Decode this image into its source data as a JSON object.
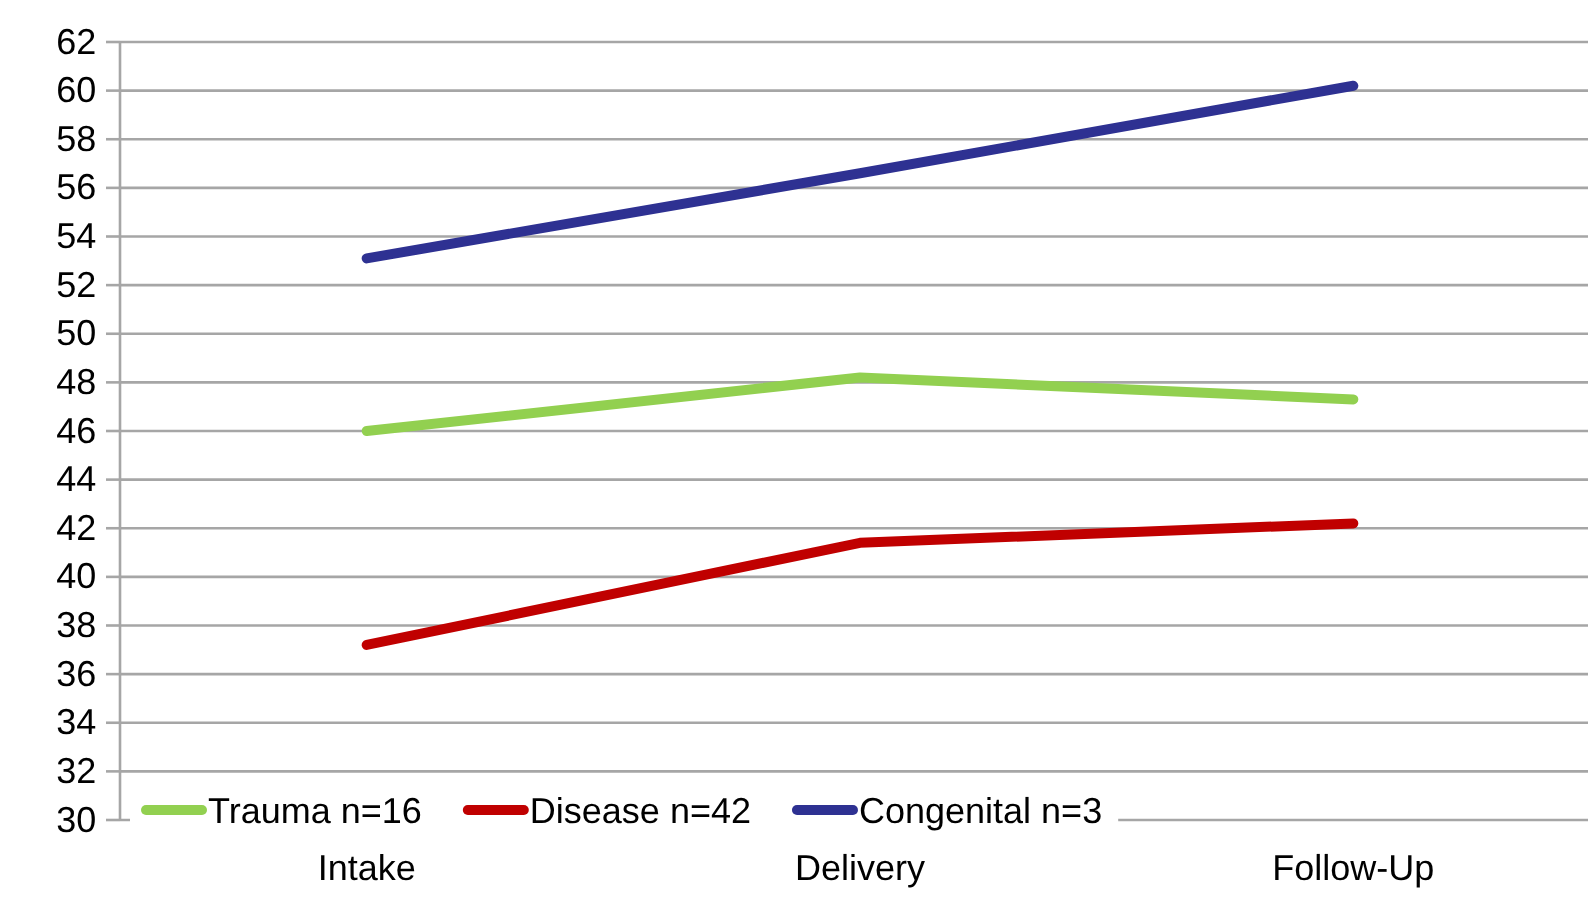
{
  "chart_data": {
    "type": "line",
    "categories": [
      "Intake",
      "Delivery",
      "Follow-Up"
    ],
    "series": [
      {
        "name": "Trauma n=16",
        "color": "#92d050",
        "values": [
          46.0,
          48.2,
          47.3
        ]
      },
      {
        "name": "Disease n=42",
        "color": "#c00000",
        "values": [
          37.2,
          41.4,
          42.2
        ]
      },
      {
        "name": "Congenital n=3",
        "color": "#2e3192",
        "values": [
          53.1,
          56.6,
          60.2
        ]
      }
    ],
    "ylim": [
      30,
      62
    ],
    "yticks": [
      30,
      32,
      34,
      36,
      38,
      40,
      42,
      44,
      46,
      48,
      50,
      52,
      54,
      56,
      58,
      60,
      62
    ],
    "grid": "y",
    "legend": "bottom",
    "marker": "none",
    "line_style": "solid"
  }
}
